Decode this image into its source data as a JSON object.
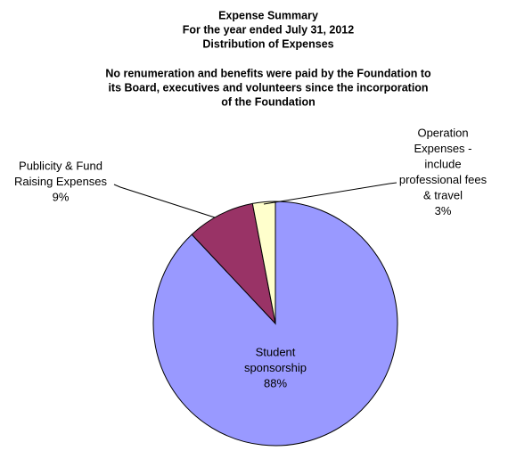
{
  "chart_data": {
    "type": "pie",
    "title": [
      "Expense Summary",
      "For the year ended July 31, 2012",
      "Distribution of Expenses"
    ],
    "subtitle": [
      "No renumeration and benefits were paid by the Foundation to",
      "its Board, executives and volunteers  since the incorporation",
      "of the Foundation"
    ],
    "categories": [
      [
        "Student",
        "sponsorship"
      ],
      [
        "Publicity & Fund",
        "Raising Expenses"
      ],
      [
        "Operation",
        "Expenses -",
        "include",
        "professional fees",
        "& travel"
      ]
    ],
    "values": [
      88,
      9,
      3
    ],
    "value_labels": [
      "88%",
      "9%",
      "3%"
    ],
    "colors": [
      "#9999ff",
      "#993366",
      "#ffffcc"
    ]
  }
}
